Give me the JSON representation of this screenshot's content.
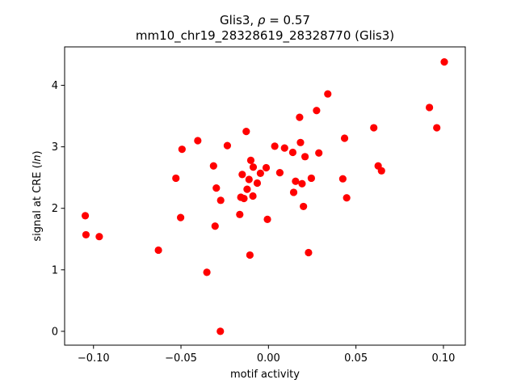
{
  "chart_data": {
    "type": "scatter",
    "title_line1_pre": "Glis3, ",
    "title_line1_rho": "ρ",
    "title_line1_post": " = 0.57",
    "title_line2": "mm10_chr19_28328619_28328770 (Glis3)",
    "xlabel": "motif activity",
    "ylabel_pre": "signal at CRE (",
    "ylabel_italic": "ln",
    "ylabel_post": ")",
    "xlim": [
      -0.1165,
      0.1125
    ],
    "ylim": [
      -0.225,
      4.625
    ],
    "xticks": [
      -0.1,
      -0.05,
      0.0,
      0.05,
      0.1
    ],
    "xtick_labels": [
      "−0.10",
      "−0.05",
      "0.00",
      "0.05",
      "0.10"
    ],
    "yticks": [
      0,
      1,
      2,
      3,
      4
    ],
    "ytick_labels": [
      "0",
      "1",
      "2",
      "3",
      "4"
    ],
    "grid": false,
    "marker_color": "#ff0000",
    "points": [
      {
        "x": -0.1047,
        "y": 1.88
      },
      {
        "x": -0.1043,
        "y": 1.57
      },
      {
        "x": -0.0967,
        "y": 1.54
      },
      {
        "x": -0.0629,
        "y": 1.32
      },
      {
        "x": -0.0529,
        "y": 2.49
      },
      {
        "x": -0.0502,
        "y": 1.85
      },
      {
        "x": -0.0494,
        "y": 2.96
      },
      {
        "x": -0.0404,
        "y": 3.1
      },
      {
        "x": -0.0352,
        "y": 0.96
      },
      {
        "x": -0.0314,
        "y": 2.69
      },
      {
        "x": -0.0305,
        "y": 1.71
      },
      {
        "x": -0.0298,
        "y": 2.33
      },
      {
        "x": -0.0275,
        "y": 0.0
      },
      {
        "x": -0.0273,
        "y": 2.13
      },
      {
        "x": -0.0235,
        "y": 3.02
      },
      {
        "x": -0.0164,
        "y": 1.9
      },
      {
        "x": -0.0158,
        "y": 2.18
      },
      {
        "x": -0.015,
        "y": 2.55
      },
      {
        "x": -0.014,
        "y": 2.16
      },
      {
        "x": -0.0127,
        "y": 3.25
      },
      {
        "x": -0.0122,
        "y": 2.31
      },
      {
        "x": -0.0111,
        "y": 2.47
      },
      {
        "x": -0.0106,
        "y": 1.24
      },
      {
        "x": -0.0101,
        "y": 2.78
      },
      {
        "x": -0.0089,
        "y": 2.2
      },
      {
        "x": -0.0087,
        "y": 2.67
      },
      {
        "x": -0.0064,
        "y": 2.41
      },
      {
        "x": -0.0046,
        "y": 2.57
      },
      {
        "x": -0.0013,
        "y": 2.66
      },
      {
        "x": -0.0006,
        "y": 1.82
      },
      {
        "x": 0.0036,
        "y": 3.01
      },
      {
        "x": 0.0065,
        "y": 2.58
      },
      {
        "x": 0.0092,
        "y": 2.98
      },
      {
        "x": 0.0139,
        "y": 2.91
      },
      {
        "x": 0.0144,
        "y": 2.26
      },
      {
        "x": 0.0155,
        "y": 2.44
      },
      {
        "x": 0.0178,
        "y": 3.48
      },
      {
        "x": 0.0183,
        "y": 3.07
      },
      {
        "x": 0.0192,
        "y": 2.4
      },
      {
        "x": 0.02,
        "y": 2.03
      },
      {
        "x": 0.0209,
        "y": 2.84
      },
      {
        "x": 0.0229,
        "y": 1.28
      },
      {
        "x": 0.0245,
        "y": 2.49
      },
      {
        "x": 0.0275,
        "y": 3.59
      },
      {
        "x": 0.0288,
        "y": 2.9
      },
      {
        "x": 0.0339,
        "y": 3.86
      },
      {
        "x": 0.0425,
        "y": 2.48
      },
      {
        "x": 0.0435,
        "y": 3.14
      },
      {
        "x": 0.0447,
        "y": 2.17
      },
      {
        "x": 0.0602,
        "y": 3.31
      },
      {
        "x": 0.0627,
        "y": 2.69
      },
      {
        "x": 0.0646,
        "y": 2.61
      },
      {
        "x": 0.092,
        "y": 3.64
      },
      {
        "x": 0.0962,
        "y": 3.31
      },
      {
        "x": 0.1005,
        "y": 4.38
      }
    ]
  }
}
